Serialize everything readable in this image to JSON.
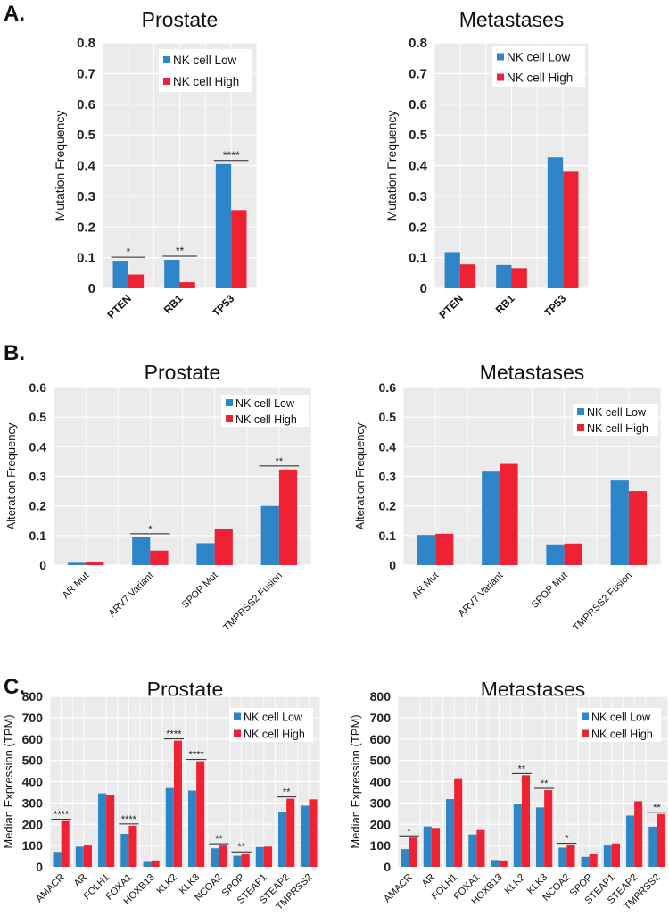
{
  "panels": {
    "a": "A.",
    "b": "B.",
    "c": "C."
  },
  "colors": {
    "low": "#2E86C8",
    "high": "#EE2233",
    "plot_bg": "#EBEBEB",
    "grid": "#FFFFFF"
  },
  "chart_data": [
    {
      "type": "bar",
      "panel": "A.",
      "title": "Prostate",
      "ylabel": "Mutation Frequency",
      "xlabel": "",
      "ylim": [
        0,
        0.8
      ],
      "yticks": [
        "0",
        "0.1",
        "0.2",
        "0.3",
        "0.4",
        "0.5",
        "0.6",
        "0.7",
        "0.8"
      ],
      "grid": true,
      "legend": "top-right",
      "categories": [
        "PTEN",
        "RB1",
        "TP53"
      ],
      "series": [
        {
          "name": "NK cell Low",
          "values": [
            0.09,
            0.093,
            0.405
          ]
        },
        {
          "name": "NK cell High",
          "values": [
            0.045,
            0.02,
            0.255
          ]
        }
      ],
      "significance": [
        {
          "category": "PTEN",
          "label": "*"
        },
        {
          "category": "RB1",
          "label": "**"
        },
        {
          "category": "TP53",
          "label": "****"
        }
      ]
    },
    {
      "type": "bar",
      "panel": "A.",
      "title": "Metastases",
      "ylabel": "Mutation Frequency",
      "xlabel": "",
      "ylim": [
        0,
        0.8
      ],
      "yticks": [
        "0",
        "0.1",
        "0.2",
        "0.3",
        "0.4",
        "0.5",
        "0.6",
        "0.7",
        "0.8"
      ],
      "grid": true,
      "legend": "top-right",
      "categories": [
        "PTEN",
        "RB1",
        "TP53"
      ],
      "series": [
        {
          "name": "NK cell Low",
          "values": [
            0.118,
            0.076,
            0.427
          ]
        },
        {
          "name": "NK cell High",
          "values": [
            0.078,
            0.066,
            0.38
          ]
        }
      ],
      "significance": []
    },
    {
      "type": "bar",
      "panel": "B.",
      "title": "Prostate",
      "ylabel": "Alteration Frequency",
      "xlabel": "",
      "ylim": [
        0,
        0.6
      ],
      "yticks": [
        "0",
        "0.1",
        "0.2",
        "0.3",
        "0.4",
        "0.5",
        "0.6"
      ],
      "grid": true,
      "legend": "top-right",
      "categories": [
        "AR Mut",
        "ARV7 Variant",
        "SPOP Mut",
        "TMPRSS2 Fusion"
      ],
      "series": [
        {
          "name": "NK cell Low",
          "values": [
            0.008,
            0.094,
            0.074,
            0.2
          ]
        },
        {
          "name": "NK cell High",
          "values": [
            0.01,
            0.049,
            0.123,
            0.323
          ]
        }
      ],
      "significance": [
        {
          "category": "ARV7 Variant",
          "label": "*"
        },
        {
          "category": "TMPRSS2 Fusion",
          "label": "**"
        }
      ]
    },
    {
      "type": "bar",
      "panel": "B.",
      "title": "Metastases",
      "ylabel": "Alteration Frequency",
      "xlabel": "",
      "ylim": [
        0,
        0.6
      ],
      "yticks": [
        "0",
        "0.1",
        "0.2",
        "0.3",
        "0.4",
        "0.5",
        "0.6"
      ],
      "grid": true,
      "legend": "top-right",
      "categories": [
        "AR Mut",
        "ARV7 Variant",
        "SPOP Mut",
        "TMPRSS2 Fusion"
      ],
      "series": [
        {
          "name": "NK cell Low",
          "values": [
            0.102,
            0.316,
            0.07,
            0.286
          ]
        },
        {
          "name": "NK cell High",
          "values": [
            0.106,
            0.342,
            0.073,
            0.25
          ]
        }
      ],
      "significance": []
    },
    {
      "type": "bar",
      "panel": "C.",
      "title": "Prostate",
      "ylabel": "Median Expression (TPM)",
      "xlabel": "",
      "ylim": [
        0,
        800
      ],
      "yticks": [
        "0",
        "100",
        "200",
        "300",
        "400",
        "500",
        "600",
        "700",
        "800"
      ],
      "grid": true,
      "legend": "top-right",
      "categories": [
        "AMACR",
        "AR",
        "FOLH1",
        "FOXA1",
        "HOXB13",
        "KLK2",
        "KLK3",
        "NCOA2",
        "SPOP",
        "STEAP1",
        "STEAP2",
        "TMPRSS2"
      ],
      "series": [
        {
          "name": "NK cell Low",
          "values": [
            70,
            95,
            345,
            155,
            27,
            370,
            358,
            87,
            52,
            93,
            257,
            287
          ]
        },
        {
          "name": "NK cell High",
          "values": [
            215,
            100,
            337,
            193,
            30,
            592,
            496,
            100,
            62,
            95,
            320,
            317
          ]
        }
      ],
      "significance": [
        {
          "category": "AMACR",
          "label": "****"
        },
        {
          "category": "FOXA1",
          "label": "****"
        },
        {
          "category": "KLK2",
          "label": "****"
        },
        {
          "category": "KLK3",
          "label": "****"
        },
        {
          "category": "NCOA2",
          "label": "**"
        },
        {
          "category": "SPOP",
          "label": "**"
        },
        {
          "category": "STEAP2",
          "label": "**"
        }
      ]
    },
    {
      "type": "bar",
      "panel": "C.",
      "title": "Metastases",
      "ylabel": "Median Expression (TPM)",
      "xlabel": "",
      "ylim": [
        0,
        800
      ],
      "yticks": [
        "0",
        "100",
        "200",
        "300",
        "400",
        "500",
        "600",
        "700",
        "800"
      ],
      "grid": true,
      "legend": "top-right",
      "categories": [
        "AMACR",
        "AR",
        "FOLH1",
        "FOXA1",
        "HOXB13",
        "KLK2",
        "KLK3",
        "NCOA2",
        "SPOP",
        "STEAP1",
        "STEAP2",
        "TMPRSS2"
      ],
      "series": [
        {
          "name": "NK cell Low",
          "values": [
            83,
            190,
            318,
            152,
            32,
            295,
            279,
            90,
            47,
            100,
            241,
            189
          ]
        },
        {
          "name": "NK cell High",
          "values": [
            137,
            183,
            416,
            173,
            30,
            430,
            360,
            102,
            59,
            110,
            308,
            248
          ]
        }
      ],
      "significance": [
        {
          "category": "AMACR",
          "label": "*"
        },
        {
          "category": "KLK2",
          "label": "**"
        },
        {
          "category": "KLK3",
          "label": "**"
        },
        {
          "category": "NCOA2",
          "label": "*"
        },
        {
          "category": "TMPRSS2",
          "label": "**"
        }
      ]
    }
  ]
}
